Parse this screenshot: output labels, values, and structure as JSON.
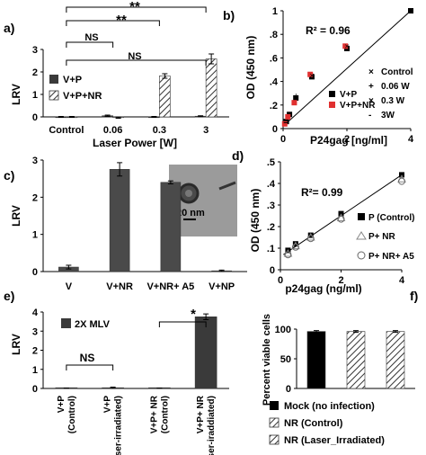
{
  "figure": {
    "panel_letters": [
      "a)",
      "b)",
      "c)",
      "d)",
      "e)",
      "f)"
    ]
  },
  "chart_data": [
    {
      "panel": "a)",
      "type": "bar",
      "xlabel": "Laser Power [W]",
      "ylabel": "LRV",
      "ylim": [
        0,
        3
      ],
      "yticks": [
        0,
        1,
        2,
        3
      ],
      "categories": [
        "Control",
        "0.06",
        "0.3",
        "3"
      ],
      "series": [
        {
          "name": "V+P",
          "color": "#3a3a3a",
          "pattern": "solid",
          "values": [
            0.0,
            0.05,
            0.0,
            0.03
          ]
        },
        {
          "name": "V+P+NR",
          "color": "#ffffff",
          "pattern": "hatch",
          "values": [
            0.0,
            -0.03,
            1.82,
            2.58
          ]
        }
      ],
      "error": [
        [
          0.02,
          0.03,
          0.02,
          0.02
        ],
        [
          0.02,
          0.03,
          0.1,
          0.22
        ]
      ],
      "legend": "top-left",
      "brackets": [
        {
          "label": "**",
          "from": 0,
          "to": 3
        },
        {
          "label": "**",
          "from": 0,
          "to": 2
        },
        {
          "label": "NS",
          "from": 0,
          "to": 1
        },
        {
          "label": "NS",
          "from": 0,
          "to": 3
        }
      ]
    },
    {
      "panel": "b)",
      "type": "scatter",
      "xlabel": "P24gag [ng/ml]",
      "ylabel": "OD (450 nm)",
      "xlim": [
        0,
        4
      ],
      "ylim": [
        0,
        1
      ],
      "xticks": [
        0,
        2,
        4
      ],
      "yticks": [
        0,
        0.2,
        0.4,
        0.6,
        0.8,
        1
      ],
      "annotation": "R² = 0.96",
      "series": [
        {
          "name": "V+P",
          "color": "#000000",
          "marker": "square",
          "x": [
            0.1,
            0.2,
            0.4,
            0.9,
            2.0,
            4.0
          ],
          "y": [
            0.06,
            0.12,
            0.26,
            0.44,
            0.68,
            1.0
          ]
        },
        {
          "name": "V+P+NR",
          "color": "#e03030",
          "marker": "square",
          "x": [
            0.05,
            0.15,
            0.35,
            0.85,
            1.95
          ],
          "y": [
            0.04,
            0.1,
            0.22,
            0.46,
            0.7
          ]
        },
        {
          "name": "Control",
          "color": "#000000",
          "marker": "x",
          "x": [
            0.9
          ],
          "y": [
            0.45
          ]
        },
        {
          "name": "0.06 W",
          "color": "#000000",
          "marker": "plus",
          "x": [
            0.4
          ],
          "y": [
            0.28
          ]
        },
        {
          "name": "0.3 W",
          "color": "#000000",
          "marker": "x",
          "x": [
            2.0
          ],
          "y": [
            0.7
          ]
        },
        {
          "name": "3W",
          "color": "#000000",
          "marker": "dash",
          "x": [
            0.1
          ],
          "y": [
            0.05
          ]
        }
      ],
      "fit": {
        "x": [
          0,
          4
        ],
        "y": [
          0.02,
          1.0
        ]
      }
    },
    {
      "panel": "c)",
      "type": "bar",
      "ylabel": "LRV",
      "ylim": [
        0,
        3
      ],
      "yticks": [
        0,
        1,
        2,
        3
      ],
      "categories": [
        "V",
        "V+NR",
        "V+NR+ A5",
        "V+NP"
      ],
      "values": [
        0.12,
        2.75,
        2.4,
        0.02
      ],
      "error": [
        0.05,
        0.18,
        0.04,
        0.02
      ],
      "color": "#4a4a4a",
      "inset": {
        "scale_label": "20 nm"
      }
    },
    {
      "panel": "d)",
      "type": "scatter",
      "xlabel": "p24gag (ng/ml)",
      "ylabel": "OD (450 nm)",
      "xlim": [
        0,
        4
      ],
      "ylim": [
        0,
        0.5
      ],
      "xticks": [
        0,
        2,
        4
      ],
      "yticks": [
        0,
        0.1,
        0.2,
        0.3,
        0.4,
        0.5
      ],
      "annotation": "R²= 0.99",
      "series": [
        {
          "name": "P (Control)",
          "color": "#000000",
          "marker": "square",
          "x": [
            0.25,
            0.5,
            1.0,
            2.0,
            4.0
          ],
          "y": [
            0.09,
            0.12,
            0.16,
            0.26,
            0.44
          ]
        },
        {
          "name": "P+ NR",
          "color": "#888888",
          "marker": "triangle",
          "x": [
            0.25,
            0.5,
            1.0,
            2.0,
            4.0
          ],
          "y": [
            0.075,
            0.11,
            0.15,
            0.24,
            0.42
          ]
        },
        {
          "name": "P+ NR+ A5",
          "color": "#666666",
          "marker": "circle",
          "x": [
            0.25,
            0.5,
            1.0,
            2.0,
            4.0
          ],
          "y": [
            0.07,
            0.105,
            0.145,
            0.235,
            0.41
          ]
        }
      ],
      "fit": {
        "x": [
          0.1,
          4.0
        ],
        "y": [
          0.07,
          0.44
        ]
      }
    },
    {
      "panel": "e)",
      "type": "bar",
      "ylabel": "LRV",
      "ylim": [
        0,
        4
      ],
      "yticks": [
        0,
        1,
        2,
        3,
        4
      ],
      "legend_title": "2X MLV",
      "categories": [
        "V+P (Control)",
        "V+P (Laser-irradiated)",
        "V+P+ NR (Control)",
        "V+P+ NR (Laser-iraddiated)"
      ],
      "values": [
        0.0,
        0.02,
        0.0,
        3.75
      ],
      "error": [
        0.02,
        0.05,
        0.02,
        0.15
      ],
      "color": "#3a3a3a",
      "brackets": [
        {
          "label": "NS",
          "from": 0,
          "to": 1
        },
        {
          "label": "*",
          "from": 2,
          "to": 3
        }
      ]
    },
    {
      "panel": "f)",
      "type": "bar",
      "ylabel": "Percent viable cells",
      "ylim": [
        0,
        100
      ],
      "yticks": [
        0,
        50,
        100
      ],
      "categories": [
        "Mock (no infection)",
        "NR (Control)",
        "NR (Laser_Irradiated)"
      ],
      "values": [
        96,
        96,
        96
      ],
      "error": [
        1.5,
        1.5,
        1.5
      ],
      "patterns": [
        "solid",
        "hatch",
        "hatch"
      ],
      "legend": "bottom"
    }
  ]
}
